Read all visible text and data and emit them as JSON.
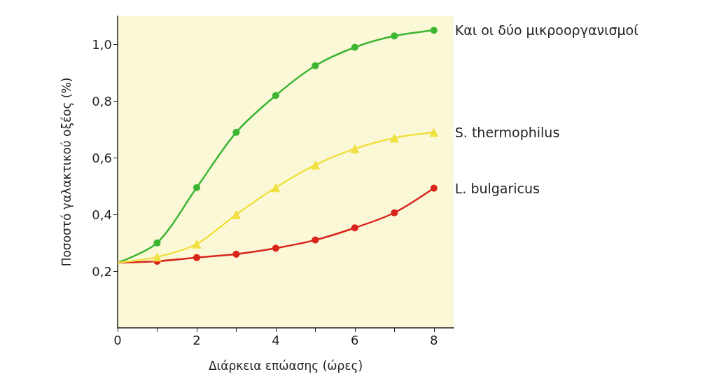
{
  "chart_data": {
    "type": "line",
    "xlabel": "Διάρκεια επώασης (ώρες)",
    "ylabel": "Ποσοστό γαλακτικού οξέος (%)",
    "x": [
      0,
      1,
      2,
      3,
      4,
      5,
      6,
      7,
      8
    ],
    "series": [
      {
        "name": "Και οι δύο μικροοργανισμοί",
        "color": "#3cb531",
        "marker": "circle",
        "values": [
          0.23,
          0.3,
          0.495,
          0.69,
          0.82,
          0.925,
          0.99,
          1.03,
          1.05
        ]
      },
      {
        "name": "S. thermophilus",
        "color": "#f0e040",
        "marker": "triangle",
        "values": [
          0.23,
          0.25,
          0.296,
          0.4,
          0.495,
          0.575,
          0.632,
          0.67,
          0.69
        ]
      },
      {
        "name": "L. bulgaricus",
        "color": "#d9251c",
        "marker": "circle",
        "values": [
          0.23,
          0.235,
          0.248,
          0.26,
          0.281,
          0.31,
          0.353,
          0.406,
          0.493
        ]
      }
    ],
    "xlim": [
      0,
      8.5
    ],
    "xticks": [
      0,
      {
        "value": 1,
        "label": null
      },
      2,
      {
        "value": 3,
        "label": null
      },
      4,
      {
        "value": 5,
        "label": null
      },
      6,
      {
        "value": 7,
        "label": null
      },
      8
    ],
    "ylim": [
      0,
      1.1
    ],
    "yticks": [
      {
        "value": 0.2,
        "label": "0,2"
      },
      {
        "value": 0.4,
        "label": "0,4"
      },
      {
        "value": 0.6,
        "label": "0,6"
      },
      {
        "value": 0.8,
        "label": "0,8"
      },
      {
        "value": 1.0,
        "label": "1,0"
      }
    ],
    "grid": false,
    "legend": false
  }
}
